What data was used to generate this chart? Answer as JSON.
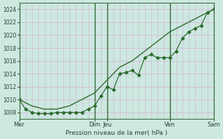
{
  "title": "",
  "xlabel": "Pression niveau de la mer( hPa )",
  "bg_color": "#cce8e0",
  "grid_color_h": "#d4b8d4",
  "grid_color_v": "#d4b8d4",
  "line_color": "#2d6b2d",
  "ylim": [
    1007,
    1025
  ],
  "ytick_vals": [
    1008,
    1010,
    1012,
    1014,
    1016,
    1018,
    1020,
    1022,
    1024
  ],
  "xtick_labels": [
    "Mer",
    "Dim",
    "Jeu",
    "Ven",
    "Sam"
  ],
  "xtick_positions": [
    0,
    12,
    14,
    24,
    31
  ],
  "vline_positions": [
    0,
    12,
    14,
    24,
    31
  ],
  "vline_color": "#336633",
  "smooth_x": [
    0,
    2,
    4,
    6,
    8,
    10,
    12,
    14,
    16,
    18,
    20,
    22,
    24,
    26,
    28,
    30,
    31
  ],
  "smooth_y": [
    1010,
    1009,
    1008.5,
    1008.5,
    1009,
    1010,
    1011,
    1013,
    1015,
    1016,
    1017.5,
    1019,
    1020.5,
    1021.5,
    1022.5,
    1023.5,
    1024
  ],
  "detail_x": [
    0,
    1,
    2,
    3,
    4,
    5,
    6,
    7,
    8,
    9,
    10,
    11,
    12,
    13,
    14,
    15,
    16,
    17,
    18,
    19,
    20,
    21,
    22,
    23,
    24,
    25,
    26,
    27,
    28,
    29,
    30,
    31
  ],
  "detail_y": [
    1010,
    1008.5,
    1008.0,
    1007.8,
    1007.8,
    1007.8,
    1008.0,
    1008.0,
    1008.0,
    1008.0,
    1008.0,
    1008.5,
    1009.0,
    1010.5,
    1012.0,
    1011.5,
    1014.0,
    1014.2,
    1014.5,
    1013.8,
    1016.5,
    1017.0,
    1016.5,
    1016.5,
    1016.5,
    1017.5,
    1019.5,
    1020.5,
    1021.0,
    1021.5,
    1023.5,
    1024
  ]
}
